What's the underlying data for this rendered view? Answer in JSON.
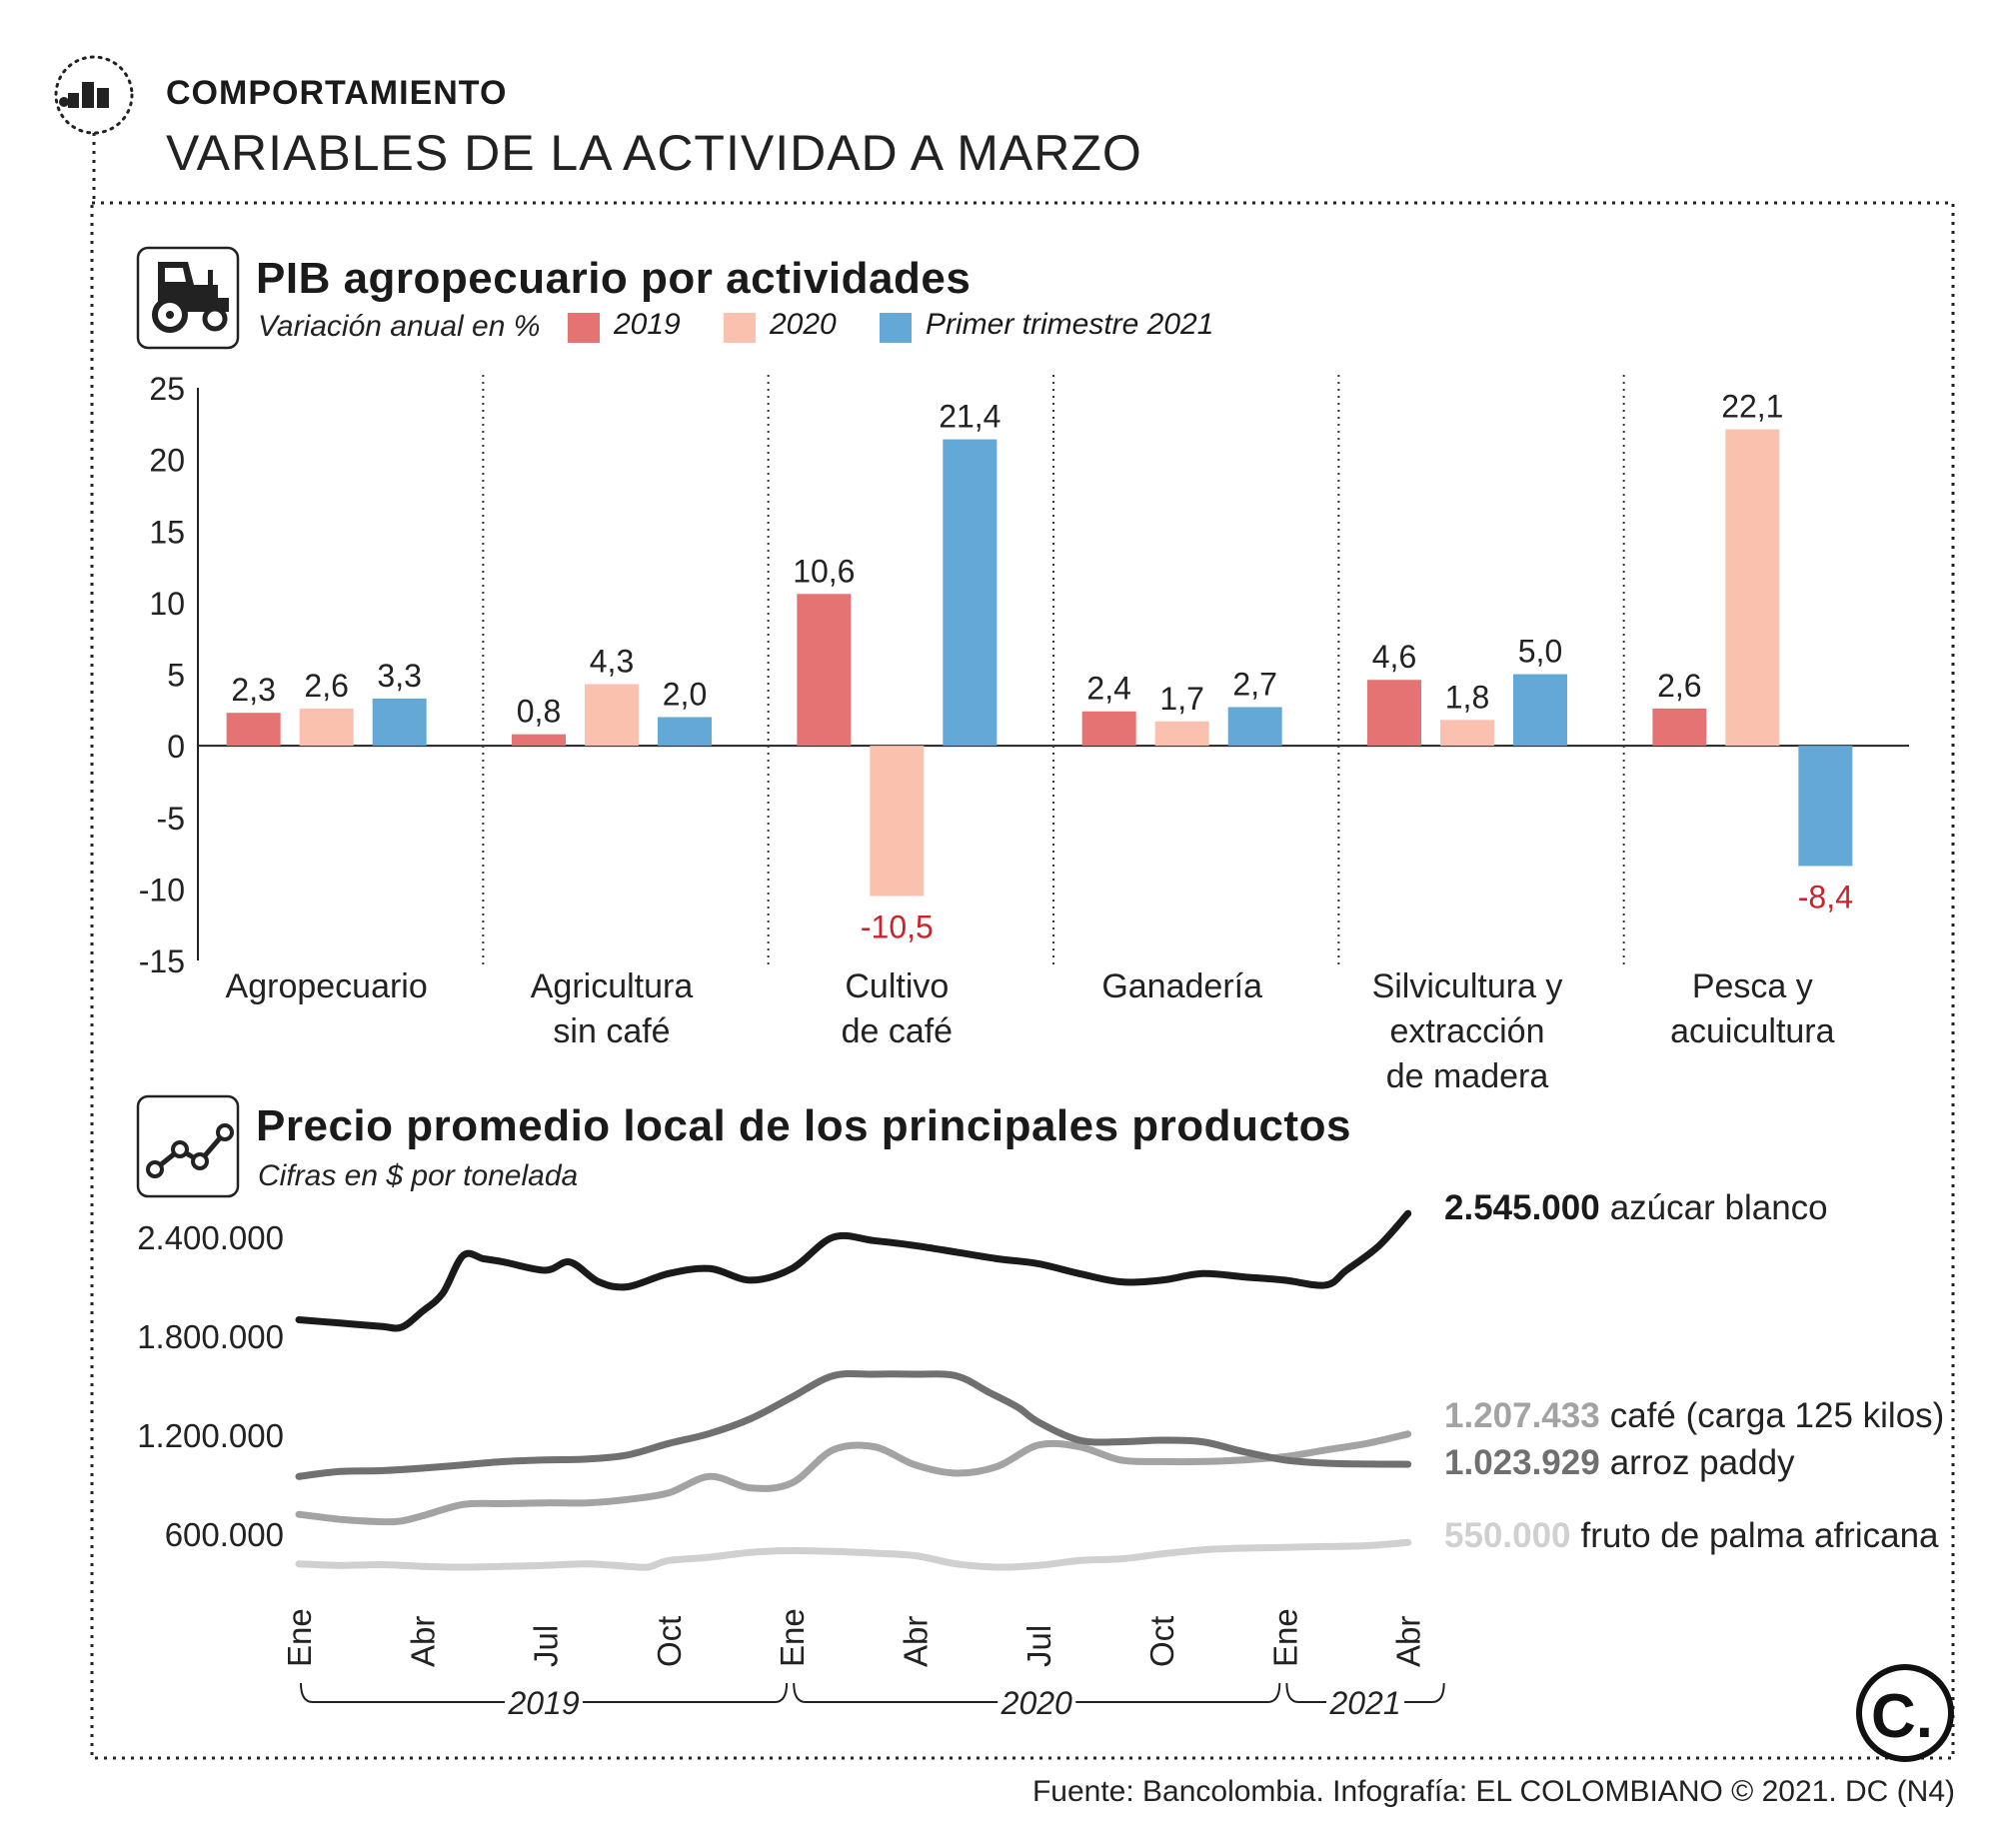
{
  "header": {
    "kicker": "COMPORTAMIENTO",
    "headline": "VARIABLES DE LA ACTIVIDAD A MARZO"
  },
  "source": "Fuente: Bancolombia. Infografía: EL COLOMBIANO © 2021. DC (N4)",
  "logo_letter": "C.",
  "icons": [
    "bar-chart-icon",
    "tractor-icon",
    "line-chart-icon",
    "el-colombiano-logo"
  ],
  "colors": {
    "c2019": "#e57373",
    "c2020": "#f9c1ae",
    "c2021": "#64a8d8",
    "negative_label": "#cc2229",
    "azucar": "#1a1a1a",
    "arroz": "#707070",
    "cafe": "#a3a3a3",
    "palma": "#d0d0d0"
  },
  "chart_data": [
    {
      "type": "bar",
      "title": "PIB agropecuario por actividades",
      "subtitle": "Variación anual en %",
      "categories": [
        [
          "Agropecuario"
        ],
        [
          "Agricultura",
          "sin café"
        ],
        [
          "Cultivo",
          "de café"
        ],
        [
          "Ganadería"
        ],
        [
          "Silvicultura y",
          "extracción",
          "de madera"
        ],
        [
          "Pesca y",
          "acuicultura"
        ]
      ],
      "series": [
        {
          "name": "2019",
          "values": [
            2.3,
            0.8,
            10.6,
            2.4,
            4.6,
            2.6
          ],
          "labels": [
            "2,3",
            "0,8",
            "10,6",
            "2,4",
            "4,6",
            "2,6"
          ]
        },
        {
          "name": "2020",
          "values": [
            2.6,
            4.3,
            -10.5,
            1.7,
            1.8,
            22.1
          ],
          "labels": [
            "2,6",
            "4,3",
            "-10,5",
            "1,7",
            "1,8",
            "22,1"
          ]
        },
        {
          "name": "Primer trimestre 2021",
          "values": [
            3.3,
            2.0,
            21.4,
            2.7,
            5.0,
            -8.4
          ],
          "labels": [
            "3,3",
            "2,0",
            "21,4",
            "2,7",
            "5,0",
            "-8,4"
          ]
        }
      ],
      "ylim": [
        -15,
        25
      ],
      "yticks": [
        25,
        20,
        15,
        10,
        5,
        0,
        -5,
        -10,
        -15
      ]
    },
    {
      "type": "line",
      "title": "Precio promedio local de los principales productos",
      "subtitle": "Cifras en $ por tonelada",
      "ylim": [
        350000,
        2650000
      ],
      "yticks": [
        {
          "value": 2400000,
          "label": "2.400.000"
        },
        {
          "value": 1800000,
          "label": "1.800.000"
        },
        {
          "value": 1200000,
          "label": "1.200.000"
        },
        {
          "value": 600000,
          "label": "600.000"
        }
      ],
      "xticks": [
        {
          "month": 0,
          "label": "Ene"
        },
        {
          "month": 3,
          "label": "Abr"
        },
        {
          "month": 6,
          "label": "Jul"
        },
        {
          "month": 9,
          "label": "Oct"
        },
        {
          "month": 12,
          "label": "Ene"
        },
        {
          "month": 15,
          "label": "Abr"
        },
        {
          "month": 18,
          "label": "Jul"
        },
        {
          "month": 21,
          "label": "Oct"
        },
        {
          "month": 24,
          "label": "Ene"
        },
        {
          "month": 27,
          "label": "Abr"
        }
      ],
      "years": [
        {
          "label": "2019",
          "from": 0,
          "to": 11
        },
        {
          "label": "2020",
          "from": 12,
          "to": 23
        },
        {
          "label": "2021",
          "from": 24,
          "to": 27
        }
      ],
      "series": [
        {
          "name": "azúcar blanco",
          "final_label": "2.545.000",
          "color_key": "azucar",
          "points": [
            [
              0,
              1900000
            ],
            [
              1,
              1880000
            ],
            [
              2,
              1860000
            ],
            [
              2.5,
              1855000
            ],
            [
              3,
              1950000
            ],
            [
              3.5,
              2060000
            ],
            [
              4,
              2290000
            ],
            [
              4.5,
              2270000
            ],
            [
              5,
              2250000
            ],
            [
              6,
              2200000
            ],
            [
              6.6,
              2250000
            ],
            [
              7.3,
              2130000
            ],
            [
              8,
              2100000
            ],
            [
              9,
              2180000
            ],
            [
              10,
              2210000
            ],
            [
              11,
              2140000
            ],
            [
              12,
              2210000
            ],
            [
              13,
              2400000
            ],
            [
              14,
              2380000
            ],
            [
              15,
              2350000
            ],
            [
              16,
              2310000
            ],
            [
              17,
              2270000
            ],
            [
              18,
              2240000
            ],
            [
              19,
              2180000
            ],
            [
              20,
              2130000
            ],
            [
              21,
              2140000
            ],
            [
              22,
              2180000
            ],
            [
              23,
              2160000
            ],
            [
              24,
              2140000
            ],
            [
              25,
              2110000
            ],
            [
              25.5,
              2200000
            ],
            [
              26.3,
              2350000
            ],
            [
              27,
              2545000
            ]
          ]
        },
        {
          "name": "café (carga 125 kilos)",
          "final_label": "1.207.433",
          "color_key": "cafe",
          "points": [
            [
              0,
              720000
            ],
            [
              1,
              690000
            ],
            [
              2,
              675000
            ],
            [
              2.5,
              680000
            ],
            [
              3,
              710000
            ],
            [
              4,
              780000
            ],
            [
              5,
              785000
            ],
            [
              6,
              790000
            ],
            [
              7,
              790000
            ],
            [
              8,
              810000
            ],
            [
              9,
              850000
            ],
            [
              10,
              950000
            ],
            [
              11,
              880000
            ],
            [
              12,
              910000
            ],
            [
              13,
              1110000
            ],
            [
              14,
              1130000
            ],
            [
              15,
              1020000
            ],
            [
              16,
              970000
            ],
            [
              17,
              1010000
            ],
            [
              18,
              1140000
            ],
            [
              19,
              1130000
            ],
            [
              20,
              1050000
            ],
            [
              21,
              1040000
            ],
            [
              22,
              1040000
            ],
            [
              23,
              1050000
            ],
            [
              24,
              1070000
            ],
            [
              25,
              1110000
            ],
            [
              26,
              1150000
            ],
            [
              27,
              1207433
            ]
          ]
        },
        {
          "name": "arroz paddy",
          "final_label": "1.023.929",
          "color_key": "arroz",
          "points": [
            [
              0,
              950000
            ],
            [
              1,
              980000
            ],
            [
              2,
              985000
            ],
            [
              3,
              1000000
            ],
            [
              4,
              1020000
            ],
            [
              5,
              1040000
            ],
            [
              6,
              1050000
            ],
            [
              7,
              1055000
            ],
            [
              8,
              1080000
            ],
            [
              9,
              1150000
            ],
            [
              10,
              1210000
            ],
            [
              11,
              1300000
            ],
            [
              12,
              1430000
            ],
            [
              13,
              1560000
            ],
            [
              14,
              1570000
            ],
            [
              15,
              1570000
            ],
            [
              16,
              1560000
            ],
            [
              16.8,
              1460000
            ],
            [
              17.5,
              1370000
            ],
            [
              18,
              1280000
            ],
            [
              19,
              1170000
            ],
            [
              20,
              1160000
            ],
            [
              21,
              1170000
            ],
            [
              22,
              1160000
            ],
            [
              23,
              1100000
            ],
            [
              24,
              1050000
            ],
            [
              25,
              1030000
            ],
            [
              26,
              1025000
            ],
            [
              27,
              1023929
            ]
          ]
        },
        {
          "name": "fruto de palma africana",
          "final_label": "550.000",
          "color_key": "palma",
          "points": [
            [
              0,
              420000
            ],
            [
              1,
              410000
            ],
            [
              2,
              415000
            ],
            [
              3,
              405000
            ],
            [
              4,
              400000
            ],
            [
              5,
              405000
            ],
            [
              6,
              410000
            ],
            [
              7,
              420000
            ],
            [
              8,
              405000
            ],
            [
              8.5,
              400000
            ],
            [
              9,
              440000
            ],
            [
              10,
              460000
            ],
            [
              11,
              490000
            ],
            [
              12,
              500000
            ],
            [
              13,
              495000
            ],
            [
              14,
              485000
            ],
            [
              15,
              470000
            ],
            [
              16,
              420000
            ],
            [
              17,
              400000
            ],
            [
              18,
              410000
            ],
            [
              19,
              440000
            ],
            [
              20,
              450000
            ],
            [
              21,
              480000
            ],
            [
              22,
              505000
            ],
            [
              23,
              515000
            ],
            [
              24,
              520000
            ],
            [
              25,
              525000
            ],
            [
              26,
              530000
            ],
            [
              27,
              550000
            ]
          ]
        }
      ]
    }
  ]
}
